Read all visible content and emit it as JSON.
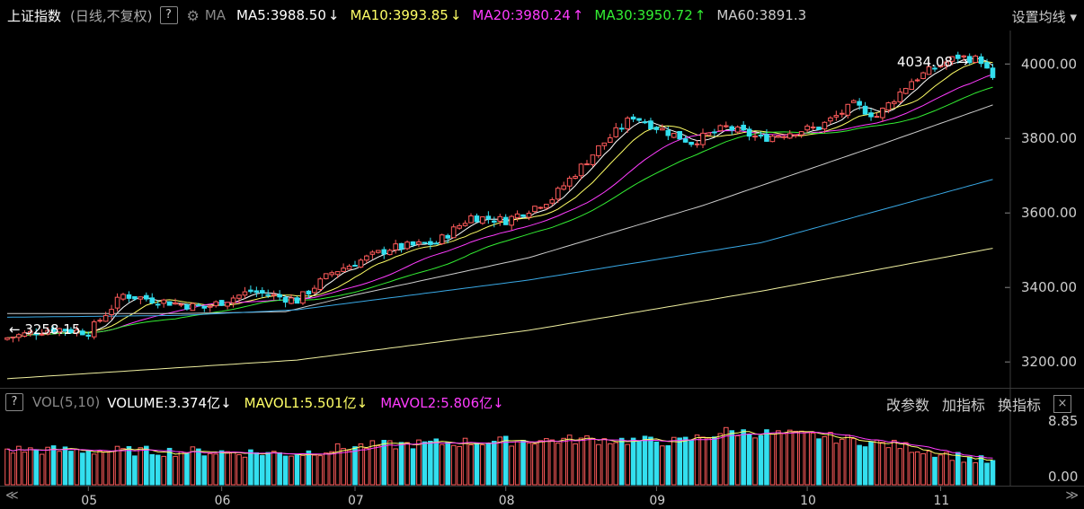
{
  "header": {
    "title": "上证指数",
    "subtitle": "(日线,不复权)",
    "help_glyph": "?",
    "gear_icon": "gear-icon",
    "ma_label": "MA",
    "ma": [
      {
        "label": "MA5:3988.50",
        "arrow": "↓",
        "color": "#ffffff"
      },
      {
        "label": "MA10:3993.85",
        "arrow": "↓",
        "color": "#ffff66"
      },
      {
        "label": "MA20:3980.24",
        "arrow": "↑",
        "color": "#ff3cff"
      },
      {
        "label": "MA30:3950.72",
        "arrow": "↑",
        "color": "#33ee33"
      },
      {
        "label": "MA60:3891.3",
        "arrow": "",
        "color": "#cccccc"
      }
    ],
    "settings_label": "设置均线",
    "settings_arrow": "▾"
  },
  "volume_header": {
    "help_glyph": "?",
    "vol_label": "VOL(5,10)",
    "volume_label": "VOLUME:3.374亿",
    "volume_arrow": "↓",
    "mavol1_label": "MAVOL1:5.501亿",
    "mavol1_arrow": "↓",
    "mavol2_label": "MAVOL2:5.806亿",
    "mavol2_arrow": "↓",
    "action_change_params": "改参数",
    "action_add_indicator": "加指标",
    "action_switch_indicator": "换指标",
    "close_glyph": "×"
  },
  "scroll": {
    "left": "≪",
    "right": "≫"
  },
  "colors": {
    "up": "#ff5b5b",
    "down": "#33dfef",
    "ma120": "#39a9e6",
    "ma250": "#f0f0a0"
  },
  "chart_data": [
    {
      "type": "candlestick",
      "title": "上证指数 (日线,不复权)",
      "y_ticks": [
        "4000.00",
        "3800.00",
        "3600.00",
        "3400.00",
        "3200.00"
      ],
      "ylim": [
        3145,
        4085
      ],
      "x_month_labels": [
        "05",
        "06",
        "07",
        "08",
        "09",
        "10",
        "11"
      ],
      "annotations": {
        "high": "4034.08",
        "low": "3258.15"
      },
      "close_anchors": [
        [
          0,
          3265
        ],
        [
          8,
          3290
        ],
        [
          14,
          3280
        ],
        [
          20,
          3380
        ],
        [
          28,
          3360
        ],
        [
          34,
          3345
        ],
        [
          42,
          3390
        ],
        [
          50,
          3365
        ],
        [
          56,
          3440
        ],
        [
          66,
          3505
        ],
        [
          74,
          3520
        ],
        [
          80,
          3590
        ],
        [
          86,
          3580
        ],
        [
          94,
          3640
        ],
        [
          102,
          3775
        ],
        [
          108,
          3860
        ],
        [
          112,
          3830
        ],
        [
          118,
          3790
        ],
        [
          124,
          3830
        ],
        [
          130,
          3800
        ],
        [
          136,
          3820
        ],
        [
          140,
          3830
        ],
        [
          146,
          3890
        ],
        [
          150,
          3860
        ],
        [
          156,
          3955
        ],
        [
          160,
          3990
        ],
        [
          164,
          4020
        ],
        [
          168,
          4010
        ],
        [
          170,
          3955
        ]
      ],
      "ma_lines": [
        {
          "name": "MA60",
          "color": "#cccccc",
          "anchors": [
            [
              0,
              3330
            ],
            [
              30,
              3330
            ],
            [
              48,
              3335
            ],
            [
              60,
              3380
            ],
            [
              90,
              3480
            ],
            [
              120,
              3620
            ],
            [
              150,
              3780
            ],
            [
              170,
              3890
            ]
          ]
        },
        {
          "name": "MA120",
          "color": "#39a9e6",
          "anchors": [
            [
              0,
              3320
            ],
            [
              30,
              3325
            ],
            [
              50,
              3340
            ],
            [
              90,
              3420
            ],
            [
              130,
              3520
            ],
            [
              170,
              3690
            ]
          ]
        },
        {
          "name": "MA250",
          "color": "#f0f0a0",
          "anchors": [
            [
              0,
              3155
            ],
            [
              50,
              3205
            ],
            [
              90,
              3285
            ],
            [
              130,
              3390
            ],
            [
              170,
              3505
            ]
          ]
        }
      ]
    },
    {
      "type": "bar",
      "title": "VOL(5,10)",
      "y_ticks": [
        "8.85",
        "0.00"
      ],
      "ylim": [
        0,
        8.85
      ],
      "unit": "亿",
      "vol_anchors": [
        [
          0,
          5.4
        ],
        [
          20,
          5.2
        ],
        [
          34,
          5.1
        ],
        [
          50,
          4.8
        ],
        [
          60,
          5.9
        ],
        [
          80,
          6.6
        ],
        [
          100,
          7.0
        ],
        [
          116,
          6.6
        ],
        [
          124,
          8.2
        ],
        [
          140,
          7.5
        ],
        [
          154,
          6.0
        ],
        [
          170,
          3.374
        ]
      ]
    }
  ]
}
